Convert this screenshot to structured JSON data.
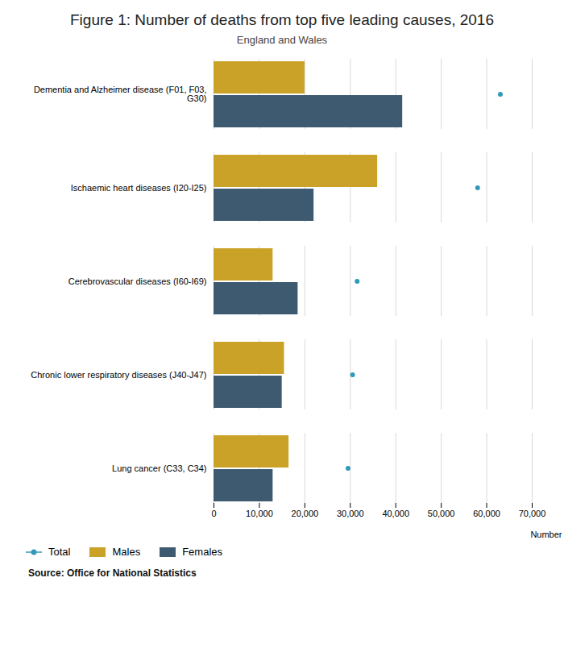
{
  "chart_data": {
    "type": "bar",
    "orientation": "horizontal",
    "title": "Figure 1: Number of deaths from top five leading causes, 2016",
    "subtitle": "England and Wales",
    "caption": "Source: Office for National Statistics",
    "xlabel": "Number",
    "categories": [
      "Dementia and Alzheimer disease (F01, F03,\nG30)",
      "Ischaemic heart diseases (I20-I25)",
      "Cerebrovascular diseases (I60-I69)",
      "Chronic lower respiratory diseases (J40-J47)",
      "Lung cancer (C33, C34)"
    ],
    "series": [
      {
        "name": "Total",
        "type": "scatter",
        "marker": "o",
        "color": "#3399bb",
        "values": [
          63000,
          58000,
          31500,
          30500,
          29500
        ]
      },
      {
        "name": "Males",
        "type": "bar",
        "color": "#c9a227",
        "values": [
          20000,
          36000,
          13000,
          15500,
          16500
        ]
      },
      {
        "name": "Females",
        "type": "bar",
        "color": "#3d5a70",
        "values": [
          41500,
          22000,
          18500,
          15000,
          13000
        ]
      }
    ],
    "xlim": [
      0,
      70000
    ],
    "xticks": [
      0,
      {
        "value": 10000,
        "label": "10,000"
      },
      {
        "value": 20000,
        "label": "20,000"
      },
      {
        "value": 30000,
        "label": "30,000"
      },
      {
        "value": 40000,
        "label": "40,000"
      },
      {
        "value": 50000,
        "label": "50,000"
      },
      {
        "value": 60000,
        "label": "60,000"
      },
      {
        "value": 70000,
        "label": "70,000"
      }
    ],
    "grid": true,
    "legend": "bottom"
  }
}
